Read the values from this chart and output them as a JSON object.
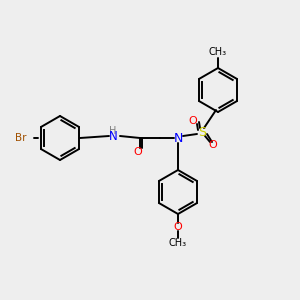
{
  "bg_color": "#eeeeee",
  "bond_color": "#000000",
  "colors": {
    "N": "#0000ff",
    "O": "#ff0000",
    "Br": "#a05000",
    "S": "#cccc00",
    "C": "#000000",
    "H": "#808080"
  },
  "figsize": [
    3.0,
    3.0
  ],
  "dpi": 100,
  "lw": 1.4,
  "ring_r": 22,
  "font_size": 7.5
}
